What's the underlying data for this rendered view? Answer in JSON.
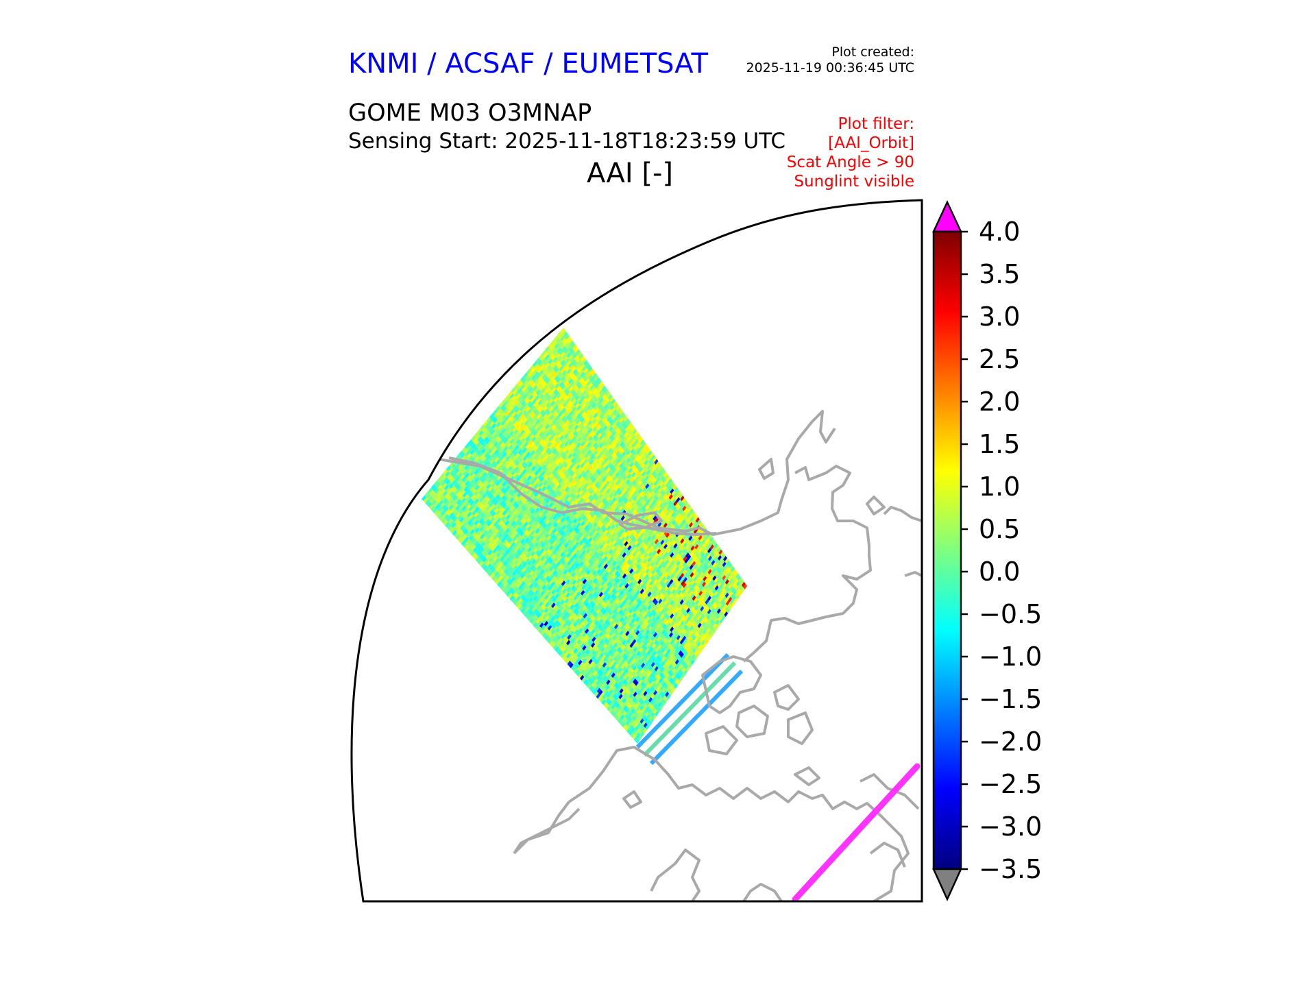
{
  "header": {
    "agency": "KNMI / ACSAF / EUMETSAT",
    "created_label": "Plot created:",
    "created_time": "2025-11-19 00:36:45 UTC",
    "product": "GOME M03 O3MNAP",
    "sensing_start": "Sensing Start: 2025-11-18T18:23:59 UTC",
    "variable": "AAI [-]"
  },
  "filter": {
    "lines": [
      "Plot filter:",
      "[AAI_Orbit]",
      "Scat Angle > 90",
      "Sunglint visible"
    ]
  },
  "colorbar": {
    "min": -3.5,
    "max": 4.0,
    "ticks": [
      "4.0",
      "3.5",
      "3.0",
      "2.5",
      "2.0",
      "1.5",
      "1.0",
      "0.5",
      "0.0",
      "−0.5",
      "−1.0",
      "−1.5",
      "−2.0",
      "−2.5",
      "−3.0",
      "−3.5"
    ],
    "over_color": "#ff00ff",
    "under_color": "#808080",
    "colormap": "jet"
  },
  "map": {
    "projection": "polar stereographic sector",
    "coastline_color": "#a9a9a9",
    "sunglint_color": "#ff33ff",
    "swath_typical_value": 0.3
  }
}
